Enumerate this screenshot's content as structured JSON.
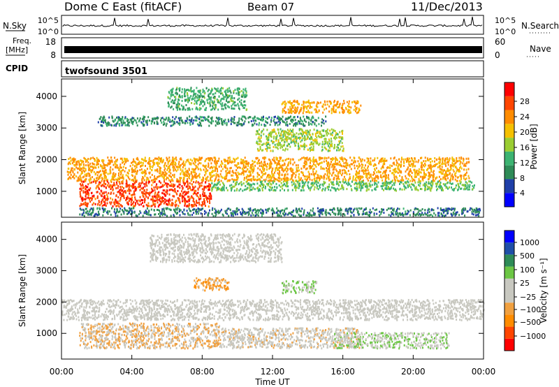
{
  "header": {
    "station": "Dome C East (fitACF)",
    "beam": "Beam 07",
    "date": "11/Dec/2013"
  },
  "nsky_panel": {
    "label": "N.Sky",
    "left_ticks": [
      "10^5",
      "10^0"
    ],
    "right_ticks": [
      "10^5",
      "10^0"
    ],
    "right_label": "N.Search"
  },
  "freq_panel": {
    "label_line1": "Freq.",
    "label_line2": "[MHz]",
    "left_ticks": [
      "18",
      "8"
    ],
    "right_ticks": [
      "60",
      "0"
    ],
    "right_label": "Nave"
  },
  "cpid_panel": {
    "label": "CPID",
    "program": "twofsound 3501"
  },
  "power_panel": {
    "ylabel": "Slant Range [km]",
    "y_ticks": [
      "4000",
      "3000",
      "2000",
      "1000"
    ],
    "colorbar_label": "Power [dB]",
    "colorbar_ticks": [
      "28",
      "24",
      "20",
      "16",
      "12",
      "8",
      "4"
    ]
  },
  "velocity_panel": {
    "ylabel": "Slant Range [km]",
    "y_ticks": [
      "4000",
      "3000",
      "2000",
      "1000"
    ],
    "colorbar_label": "Velocity [m s⁻¹]",
    "colorbar_ticks": [
      "1000",
      "500",
      "100",
      "25",
      "−25",
      "−100",
      "−500",
      "−1000"
    ]
  },
  "xaxis": {
    "ticks": [
      "00:00",
      "04:00",
      "08:00",
      "12:00",
      "16:00",
      "20:00",
      "00:00"
    ],
    "label": "Time UT"
  },
  "colors": {
    "power_scale": [
      "#0000ff",
      "#1f3fa8",
      "#2e8b57",
      "#3cb371",
      "#9acd32",
      "#f5c000",
      "#ff8c00",
      "#ff4500",
      "#ff0000"
    ],
    "velocity_scale": [
      "#ff0000",
      "#ff4500",
      "#ff8c00",
      "#f0a040",
      "#c8c8c0",
      "#c8c8c0",
      "#6cc644",
      "#2e8b57",
      "#1f4fa8",
      "#0000ff"
    ]
  },
  "chart_data": [
    {
      "type": "heatmap",
      "name": "power",
      "xlabel": "Time UT",
      "ylabel": "Slant Range [km]",
      "xlim": [
        0,
        24
      ],
      "ylim": [
        180,
        4550
      ],
      "colorbar": "Power [dB]",
      "clim": [
        0,
        32
      ],
      "scatter_bands": [
        {
          "x": [
            0.3,
            23.2
          ],
          "y": [
            1350,
            2100
          ],
          "value": 22
        },
        {
          "x": [
            1.0,
            8.5
          ],
          "y": [
            550,
            1350
          ],
          "value": 27
        },
        {
          "x": [
            8.5,
            23.5
          ],
          "y": [
            1050,
            1350
          ],
          "value": 14
        },
        {
          "x": [
            1.0,
            23.8
          ],
          "y": [
            250,
            500
          ],
          "value": 8
        },
        {
          "x": [
            2.0,
            15.0
          ],
          "y": [
            3100,
            3400
          ],
          "value": 9
        },
        {
          "x": [
            6.0,
            10.5
          ],
          "y": [
            3600,
            4300
          ],
          "value": 12
        },
        {
          "x": [
            12.5,
            17.0
          ],
          "y": [
            3500,
            3900
          ],
          "value": 22
        },
        {
          "x": [
            11.0,
            16.0
          ],
          "y": [
            2300,
            3000
          ],
          "value": 16
        }
      ]
    },
    {
      "type": "heatmap",
      "name": "velocity",
      "xlabel": "Time UT",
      "ylabel": "Slant Range [km]",
      "xlim": [
        0,
        24
      ],
      "ylim": [
        180,
        4550
      ],
      "colorbar": "Velocity [m s⁻¹]",
      "clim": [
        -1000,
        1000
      ],
      "scatter_bands": [
        {
          "x": [
            0.0,
            24.0
          ],
          "y": [
            1450,
            2100
          ],
          "value": 0
        },
        {
          "x": [
            1.0,
            9.0
          ],
          "y": [
            550,
            1350
          ],
          "value": -200
        },
        {
          "x": [
            9.0,
            17.0
          ],
          "y": [
            550,
            1200
          ],
          "value": -80
        },
        {
          "x": [
            15.5,
            22.0
          ],
          "y": [
            550,
            1050
          ],
          "value": 150
        },
        {
          "x": [
            5.0,
            12.5
          ],
          "y": [
            3300,
            4200
          ],
          "value": 10
        },
        {
          "x": [
            7.5,
            9.5
          ],
          "y": [
            2400,
            2800
          ],
          "value": -300
        },
        {
          "x": [
            12.5,
            14.5
          ],
          "y": [
            2300,
            2700
          ],
          "value": 200
        }
      ]
    }
  ]
}
